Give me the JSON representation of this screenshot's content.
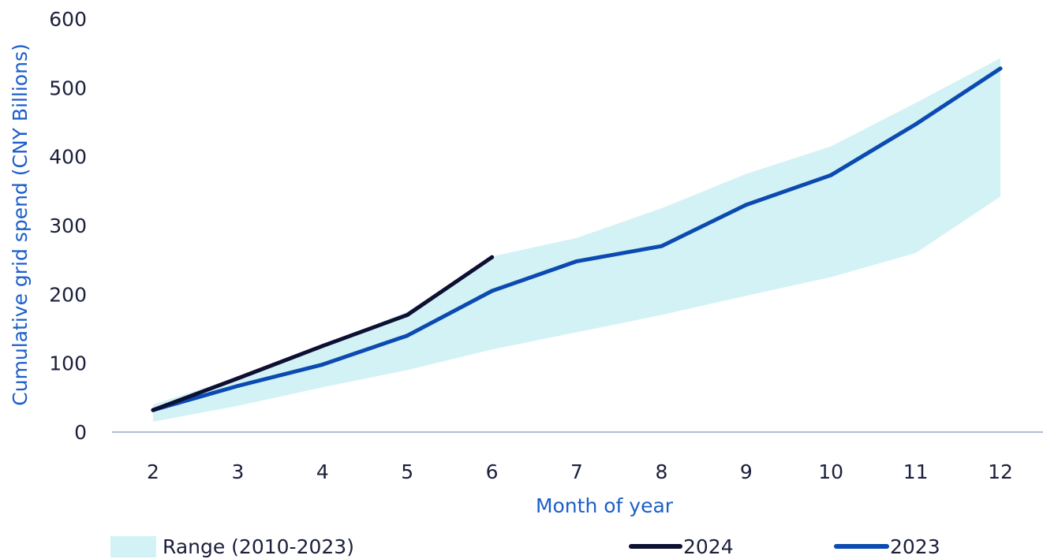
{
  "chart_data": {
    "type": "line",
    "title": "",
    "xlabel": "Month of year",
    "ylabel": "Cumulative grid spend (CNY Billions)",
    "x": [
      2,
      3,
      4,
      5,
      6,
      7,
      8,
      9,
      10,
      11,
      12
    ],
    "xticks": [
      "2",
      "3",
      "4",
      "5",
      "6",
      "7",
      "8",
      "9",
      "10",
      "11",
      "12"
    ],
    "yticks": [
      "0",
      "100",
      "200",
      "300",
      "400",
      "500",
      "600"
    ],
    "ylim": [
      0,
      600
    ],
    "grid": false,
    "legend_position": "bottom",
    "range": {
      "name": "Range (2010-2023)",
      "color": "#d3f2f5",
      "upper": [
        40,
        80,
        125,
        175,
        255,
        282,
        325,
        375,
        415,
        478,
        543
      ],
      "lower": [
        15,
        38,
        65,
        90,
        120,
        145,
        170,
        198,
        225,
        260,
        342
      ]
    },
    "series": [
      {
        "name": "2024",
        "color": "#0d0f33",
        "x": [
          2,
          3,
          4,
          5,
          6
        ],
        "values": [
          32,
          78,
          125,
          170,
          254
        ]
      },
      {
        "name": "2023",
        "color": "#0b4ab0",
        "x": [
          2,
          3,
          4,
          5,
          6,
          7,
          8,
          9,
          10,
          11,
          12
        ],
        "values": [
          32,
          67,
          98,
          140,
          205,
          248,
          270,
          330,
          373,
          447,
          528
        ]
      }
    ],
    "axis_title_color": "#1c5ec9",
    "baseline_color": "#9aa3c6"
  }
}
